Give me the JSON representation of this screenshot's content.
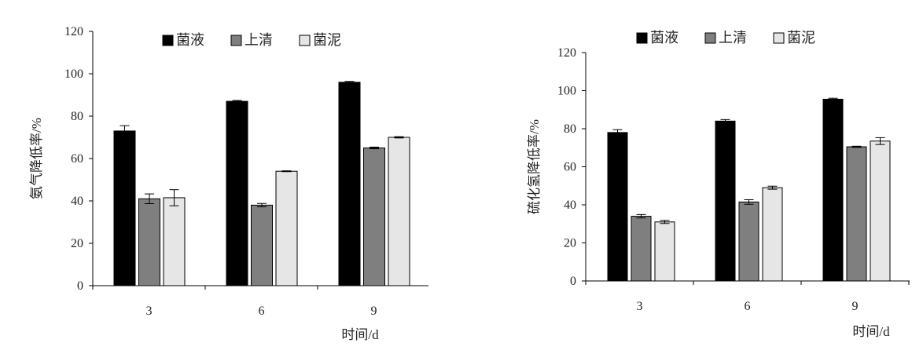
{
  "chart_data": [
    {
      "type": "bar",
      "categories": [
        "3",
        "6",
        "9"
      ],
      "xlabel": "时间/d",
      "ylabel": "氨气降低率/%",
      "ylim": [
        0,
        120
      ],
      "yticks": [
        "0",
        "20",
        "40",
        "60",
        "80",
        "100",
        "120"
      ],
      "legend_placement": "top",
      "series": [
        {
          "name": "菌液",
          "color": "#000000",
          "values": [
            73,
            87,
            96
          ],
          "errors": [
            2.5,
            0.4,
            0.4
          ]
        },
        {
          "name": "上清",
          "color": "#7f7f7f",
          "values": [
            41,
            38,
            65
          ],
          "errors": [
            2.3,
            0.8,
            0.4
          ]
        },
        {
          "name": "菌泥",
          "color": "#e6e6e6",
          "values": [
            41.5,
            54,
            70
          ],
          "errors": [
            3.8,
            0.2,
            0.3
          ]
        }
      ]
    },
    {
      "type": "bar",
      "categories": [
        "3",
        "6",
        "9"
      ],
      "xlabel": "时间/d",
      "ylabel": "硫化氢降低率/%",
      "ylim": [
        0,
        120
      ],
      "yticks": [
        "0",
        "20",
        "40",
        "60",
        "80",
        "100",
        "120"
      ],
      "legend_placement": "top",
      "series": [
        {
          "name": "菌液",
          "color": "#000000",
          "values": [
            78,
            84,
            95.5
          ],
          "errors": [
            1.5,
            0.8,
            0.5
          ]
        },
        {
          "name": "上清",
          "color": "#7f7f7f",
          "values": [
            34,
            41.5,
            70.5
          ],
          "errors": [
            0.9,
            1.2,
            0.3
          ]
        },
        {
          "name": "菌泥",
          "color": "#e6e6e6",
          "values": [
            31,
            49,
            73.5
          ],
          "errors": [
            0.8,
            0.8,
            1.8
          ]
        }
      ]
    }
  ]
}
